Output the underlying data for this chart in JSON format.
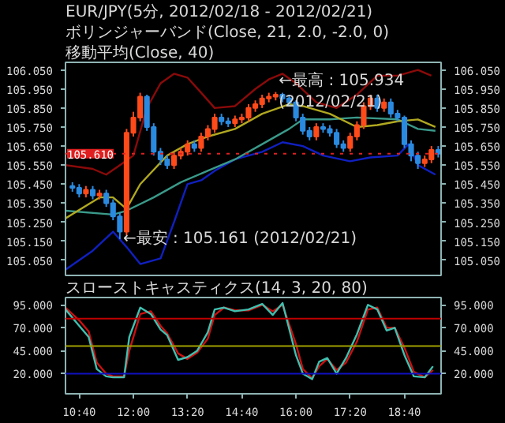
{
  "chart_data": [
    {
      "type": "candlestick",
      "title": "EUR/JPY(5分, 2012/02/18 - 2012/02/21)",
      "subtitle": "ボリンジャーバンド(Close, 21, 2.0, -2.0, 0)",
      "xlim": [
        10.33,
        19.57
      ],
      "ylim": [
        104.97,
        106.09
      ],
      "yticks": [
        {
          "value": 105.05,
          "label": "105.050"
        },
        {
          "value": 105.15,
          "label": "105.150"
        },
        {
          "value": 105.25,
          "label": "105.250"
        },
        {
          "value": 105.35,
          "label": "105.350"
        },
        {
          "value": 105.45,
          "label": "105.450"
        },
        {
          "value": 105.55,
          "label": "105.550"
        },
        {
          "value": 105.65,
          "label": "105.650"
        },
        {
          "value": 105.75,
          "label": "105.750"
        },
        {
          "value": 105.85,
          "label": "105.850"
        },
        {
          "value": 105.95,
          "label": "105.950"
        },
        {
          "value": 106.05,
          "label": "106.050"
        }
      ],
      "y2lim": [
        104.97,
        106.09
      ],
      "y2ticks": [
        {
          "value": 105.05,
          "label": "105.050"
        },
        {
          "value": 105.15,
          "label": "105.150"
        },
        {
          "value": 105.25,
          "label": "105.250"
        },
        {
          "value": 105.35,
          "label": "105.350"
        },
        {
          "value": 105.45,
          "label": "105.450"
        },
        {
          "value": 105.55,
          "label": "105.550"
        },
        {
          "value": 105.65,
          "label": "105.650"
        },
        {
          "value": 105.75,
          "label": "105.750"
        },
        {
          "value": 105.85,
          "label": "105.850"
        },
        {
          "value": 105.95,
          "label": "105.950"
        },
        {
          "value": 106.05,
          "label": "106.050"
        }
      ],
      "tick_labels": "y",
      "grid": false,
      "ref_lines": [
        {
          "axis": "y",
          "value": 105.61,
          "label": "105.610",
          "color": "#e02020",
          "line_style": "dotted"
        }
      ],
      "annotations": [
        "移動平均(Close, 40)",
        {
          "text": "←最高 : 105.934 (2012/02/21)",
          "x": 15.5,
          "y": 105.934
        },
        {
          "text": "←最安 : 105.161 (2012/02/21)",
          "x": 11.667,
          "y": 105.161
        }
      ],
      "series": [
        {
          "type": "line",
          "color": "#8b0a0a",
          "x": [
            10.33,
            11.0,
            11.33,
            11.67,
            12.0,
            12.33,
            12.67,
            13.0,
            13.33,
            13.67,
            14.0,
            14.5,
            15.0,
            15.33,
            15.67,
            16.0,
            16.5,
            17.0,
            17.5,
            18.0,
            18.5,
            19.0,
            19.33
          ],
          "values": [
            105.55,
            105.53,
            105.5,
            105.55,
            105.6,
            105.85,
            105.98,
            106.03,
            106.01,
            105.93,
            105.85,
            105.86,
            105.95,
            106.0,
            106.03,
            105.98,
            105.88,
            105.85,
            105.92,
            106.02,
            106.02,
            106.05,
            106.02
          ]
        },
        {
          "type": "line",
          "color": "#1020c0",
          "x": [
            10.33,
            11.0,
            11.5,
            11.83,
            12.17,
            12.67,
            13.0,
            13.33,
            13.67,
            14.0,
            14.5,
            15.17,
            15.67,
            16.17,
            16.67,
            17.33,
            17.83,
            18.5,
            18.77,
            19.0,
            19.43
          ],
          "values": [
            105.0,
            105.1,
            105.2,
            105.12,
            105.03,
            105.06,
            105.25,
            105.45,
            105.47,
            105.52,
            105.58,
            105.62,
            105.67,
            105.65,
            105.6,
            105.57,
            105.59,
            105.6,
            105.66,
            105.55,
            105.5
          ]
        },
        {
          "type": "line",
          "color": "#3a9a8a",
          "x": [
            10.33,
            11.5,
            11.83,
            12.5,
            13.17,
            13.83,
            14.5,
            15.17,
            15.83,
            16.17,
            16.83,
            17.5,
            18.5,
            19.0,
            19.43
          ],
          "values": [
            105.31,
            105.29,
            105.31,
            105.38,
            105.46,
            105.52,
            105.58,
            105.66,
            105.74,
            105.79,
            105.79,
            105.8,
            105.79,
            105.74,
            105.73
          ]
        },
        {
          "type": "line",
          "color": "#b0a820",
          "x": [
            10.33,
            11.17,
            11.5,
            11.83,
            12.17,
            12.83,
            13.33,
            13.83,
            14.5,
            15.17,
            15.83,
            16.17,
            16.83,
            17.5,
            18.0,
            18.5,
            19.0,
            19.43
          ],
          "values": [
            105.27,
            105.38,
            105.38,
            105.32,
            105.45,
            105.6,
            105.66,
            105.7,
            105.74,
            105.82,
            105.87,
            105.86,
            105.82,
            105.75,
            105.76,
            105.78,
            105.79,
            105.75
          ]
        },
        {
          "type": "candlestick",
          "colors": [
            "#2a8ae0",
            "#2a8ae0",
            "#ff4a1a",
            "#2a8ae0",
            "#ff4a1a",
            "#2a8ae0",
            "#2a8ae0",
            "#2a8ae0",
            "#ff4a1a",
            "#ff4a1a",
            "#ff4a1a",
            "#2a8ae0",
            "#2a8ae0",
            "#2a8ae0",
            "#2a8ae0",
            "#ff4a1a",
            "#ff4a1a",
            "#ff4a1a",
            "#2a8ae0",
            "#ff4a1a",
            "#ff4a1a",
            "#ff4a1a",
            "#2a8ae0",
            "#2a8ae0",
            "#ff4a1a",
            "#ff4a1a",
            "#ff4a1a",
            "#ff4a1a",
            "#ff4a1a",
            "#ff4a1a",
            "#ff4a1a",
            "#2a8ae0",
            "#2a8ae0",
            "#2a8ae0",
            "#2a8ae0",
            "#2a8ae0",
            "#ff4a1a",
            "#2a8ae0",
            "#2a8ae0",
            "#2a8ae0",
            "#2a8ae0",
            "#ff4a1a",
            "#ff4a1a",
            "#ff4a1a",
            "#ff4a1a",
            "#2a8ae0",
            "#ff4a1a",
            "#2a8ae0",
            "#2a8ae0",
            "#2a8ae0",
            "#2a8ae0",
            "#2a8ae0",
            "#ff4a1a",
            "#ff4a1a",
            "#2a8ae0"
          ],
          "x": [
            10.5,
            10.667,
            10.833,
            11,
            11.167,
            11.333,
            11.5,
            11.667,
            11.833,
            12,
            12.167,
            12.333,
            12.5,
            12.667,
            12.833,
            13,
            13.167,
            13.333,
            13.5,
            13.667,
            13.833,
            14,
            14.167,
            14.333,
            14.5,
            14.667,
            14.833,
            15,
            15.167,
            15.333,
            15.5,
            15.667,
            15.833,
            16,
            16.167,
            16.333,
            16.5,
            16.667,
            16.833,
            17,
            17.167,
            17.333,
            17.5,
            17.667,
            17.833,
            18,
            18.167,
            18.333,
            18.5,
            18.667,
            18.833,
            19,
            19.167,
            19.333,
            19.5
          ],
          "ohlc": [
            [
              105.44,
              105.46,
              105.41,
              105.43
            ],
            [
              105.43,
              105.45,
              105.38,
              105.4
            ],
            [
              105.4,
              105.44,
              105.38,
              105.42
            ],
            [
              105.42,
              105.44,
              105.37,
              105.39
            ],
            [
              105.39,
              105.42,
              105.37,
              105.4
            ],
            [
              105.4,
              105.42,
              105.33,
              105.35
            ],
            [
              105.35,
              105.37,
              105.26,
              105.28
            ],
            [
              105.28,
              105.3,
              105.161,
              105.2
            ],
            [
              105.2,
              105.74,
              105.18,
              105.72
            ],
            [
              105.72,
              105.83,
              105.7,
              105.8
            ],
            [
              105.8,
              105.93,
              105.78,
              105.91
            ],
            [
              105.91,
              105.92,
              105.73,
              105.75
            ],
            [
              105.75,
              105.77,
              105.6,
              105.62
            ],
            [
              105.62,
              105.64,
              105.55,
              105.58
            ],
            [
              105.58,
              105.6,
              105.53,
              105.55
            ],
            [
              105.55,
              105.62,
              105.53,
              105.6
            ],
            [
              105.6,
              105.64,
              105.58,
              105.62
            ],
            [
              105.62,
              105.68,
              105.6,
              105.66
            ],
            [
              105.66,
              105.68,
              105.62,
              105.64
            ],
            [
              105.64,
              105.72,
              105.62,
              105.7
            ],
            [
              105.7,
              105.76,
              105.68,
              105.74
            ],
            [
              105.74,
              105.82,
              105.72,
              105.8
            ],
            [
              105.8,
              105.82,
              105.76,
              105.78
            ],
            [
              105.78,
              105.8,
              105.75,
              105.77
            ],
            [
              105.77,
              105.81,
              105.75,
              105.79
            ],
            [
              105.79,
              105.82,
              105.77,
              105.8
            ],
            [
              105.8,
              105.87,
              105.78,
              105.85
            ],
            [
              105.85,
              105.89,
              105.83,
              105.87
            ],
            [
              105.87,
              105.92,
              105.85,
              105.9
            ],
            [
              105.9,
              105.93,
              105.88,
              105.91
            ],
            [
              105.91,
              105.934,
              105.89,
              105.92
            ],
            [
              105.92,
              105.93,
              105.88,
              105.9
            ],
            [
              105.9,
              105.92,
              105.86,
              105.88
            ],
            [
              105.88,
              105.89,
              105.78,
              105.8
            ],
            [
              105.8,
              105.82,
              105.71,
              105.73
            ],
            [
              105.73,
              105.75,
              105.68,
              105.7
            ],
            [
              105.7,
              105.77,
              105.68,
              105.75
            ],
            [
              105.75,
              105.77,
              105.72,
              105.74
            ],
            [
              105.74,
              105.76,
              105.7,
              105.72
            ],
            [
              105.72,
              105.74,
              105.64,
              105.66
            ],
            [
              105.66,
              105.68,
              105.62,
              105.64
            ],
            [
              105.64,
              105.72,
              105.62,
              105.7
            ],
            [
              105.7,
              105.78,
              105.68,
              105.76
            ],
            [
              105.76,
              105.88,
              105.74,
              105.86
            ],
            [
              105.86,
              105.92,
              105.84,
              105.9
            ],
            [
              105.9,
              105.92,
              105.83,
              105.85
            ],
            [
              105.85,
              105.9,
              105.83,
              105.88
            ],
            [
              105.88,
              105.9,
              105.8,
              105.82
            ],
            [
              105.82,
              105.84,
              105.78,
              105.8
            ],
            [
              105.8,
              105.81,
              105.64,
              105.66
            ],
            [
              105.66,
              105.68,
              105.57,
              105.6
            ],
            [
              105.6,
              105.62,
              105.53,
              105.56
            ],
            [
              105.56,
              105.6,
              105.54,
              105.58
            ],
            [
              105.58,
              105.65,
              105.56,
              105.63
            ],
            [
              105.63,
              105.65,
              105.59,
              105.61
            ]
          ]
        }
      ]
    },
    {
      "type": "line",
      "title": "スローストキャスティクス(14, 3, 20, 80)",
      "xlim": [
        10.33,
        19.57
      ],
      "xticks": [
        {
          "value": 10.667,
          "label": "10:40"
        },
        {
          "value": 12,
          "label": "12:00"
        },
        {
          "value": 13.333,
          "label": "13:20"
        },
        {
          "value": 14.667,
          "label": "14:40"
        },
        {
          "value": 16,
          "label": "16:00"
        },
        {
          "value": 17.333,
          "label": "17:20"
        },
        {
          "value": 18.667,
          "label": "18:40"
        }
      ],
      "ylim": [
        -2,
        103
      ],
      "yticks": [
        {
          "value": 20,
          "label": "20.000"
        },
        {
          "value": 45,
          "label": "45.000"
        },
        {
          "value": 70,
          "label": "70.000"
        },
        {
          "value": 95,
          "label": "95.000"
        }
      ],
      "y2lim": [
        -2,
        103
      ],
      "y2ticks": [
        {
          "value": 20,
          "label": "20.000"
        },
        {
          "value": 45,
          "label": "45.000"
        },
        {
          "value": 70,
          "label": "70.000"
        },
        {
          "value": 95,
          "label": "95.000"
        }
      ],
      "grid": false,
      "ref_lines": [
        {
          "axis": "y",
          "value": 80,
          "color": "#c00000",
          "line_style": "solid"
        },
        {
          "axis": "y",
          "value": 50,
          "color": "#a0a000",
          "line_style": "solid"
        },
        {
          "axis": "y",
          "value": 20,
          "color": "#1010c0",
          "line_style": "solid"
        }
      ],
      "series": [
        {
          "color": "#cc1010",
          "x": [
            10.33,
            10.67,
            10.9,
            11.1,
            11.33,
            11.5,
            11.77,
            11.9,
            12.17,
            12.43,
            12.67,
            12.83,
            13.1,
            13.33,
            13.57,
            13.83,
            14.0,
            14.23,
            14.5,
            14.83,
            15.17,
            15.43,
            15.67,
            16.0,
            16.17,
            16.4,
            16.57,
            16.77,
            17.0,
            17.23,
            17.5,
            17.77,
            18.0,
            18.23,
            18.43,
            18.67,
            18.9,
            19.17,
            19.37
          ],
          "values": [
            92,
            78,
            66,
            32,
            20,
            17,
            17,
            45,
            85,
            88,
            72,
            64,
            42,
            36,
            43,
            58,
            84,
            92,
            89,
            89,
            95,
            88,
            95,
            52,
            25,
            15,
            28,
            36,
            24,
            32,
            55,
            90,
            92,
            70,
            70,
            48,
            22,
            16,
            24
          ]
        },
        {
          "color": "#40c0b0",
          "x": [
            10.33,
            10.67,
            10.9,
            11.1,
            11.33,
            11.5,
            11.77,
            11.9,
            12.17,
            12.43,
            12.67,
            12.83,
            13.1,
            13.33,
            13.57,
            13.83,
            14.0,
            14.23,
            14.5,
            14.83,
            15.17,
            15.43,
            15.67,
            16.0,
            16.17,
            16.4,
            16.57,
            16.77,
            17.0,
            17.23,
            17.5,
            17.77,
            18.0,
            18.23,
            18.43,
            18.67,
            18.9,
            19.17,
            19.37
          ],
          "values": [
            90,
            72,
            60,
            25,
            17,
            16,
            16,
            60,
            92,
            85,
            68,
            62,
            35,
            38,
            45,
            65,
            90,
            92,
            88,
            90,
            96,
            84,
            97,
            40,
            20,
            14,
            33,
            37,
            20,
            37,
            63,
            95,
            90,
            67,
            70,
            40,
            17,
            16,
            28
          ]
        }
      ]
    }
  ]
}
